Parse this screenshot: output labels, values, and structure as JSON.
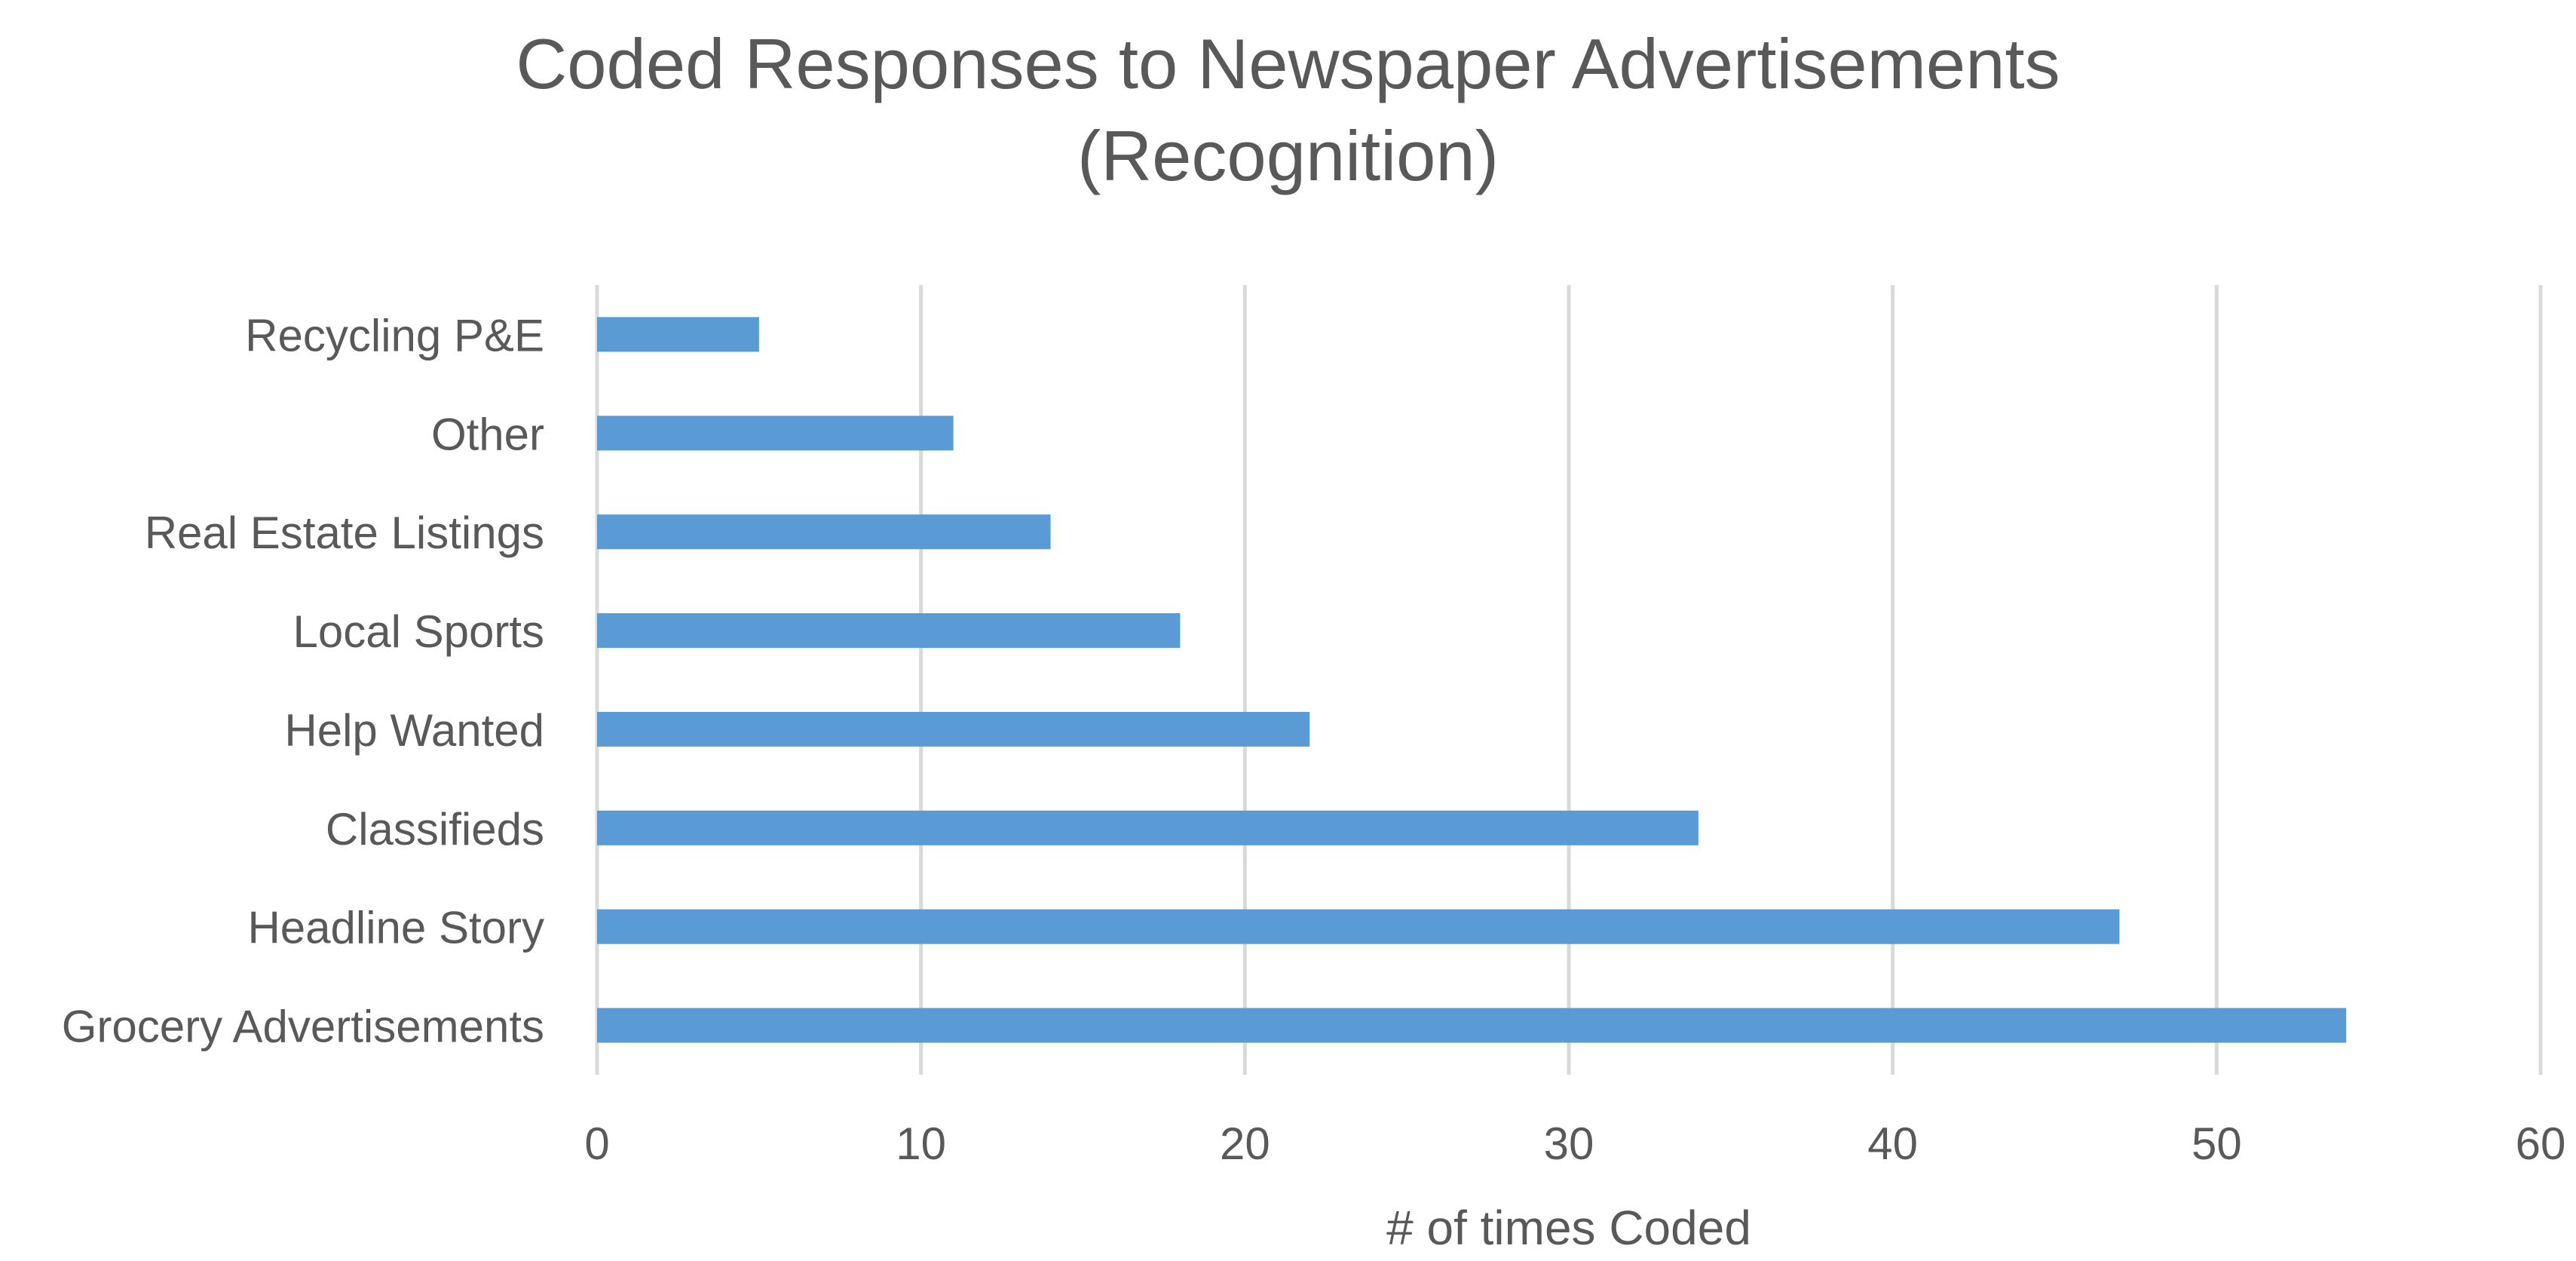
{
  "chart_data": {
    "type": "bar",
    "orientation": "horizontal",
    "title_lines": [
      "Coded Responses to Newspaper Advertisements",
      "(Recognition)"
    ],
    "categories": [
      "Grocery Advertisements",
      "Headline Story",
      "Classifieds",
      "Help Wanted",
      "Local Sports",
      "Real Estate Listings",
      "Other",
      "Recycling P&E"
    ],
    "values": [
      54,
      47,
      34,
      22,
      18,
      14,
      11,
      5
    ],
    "xlabel": "# of times Coded",
    "ylabel": "",
    "xlim": [
      0,
      60
    ],
    "xticks": [
      0,
      10,
      20,
      30,
      40,
      50,
      60
    ],
    "grid": "vertical",
    "legend": "none",
    "bar_color": "#5B9BD5",
    "grid_color": "#D9D9D9",
    "text_color": "#595959"
  }
}
